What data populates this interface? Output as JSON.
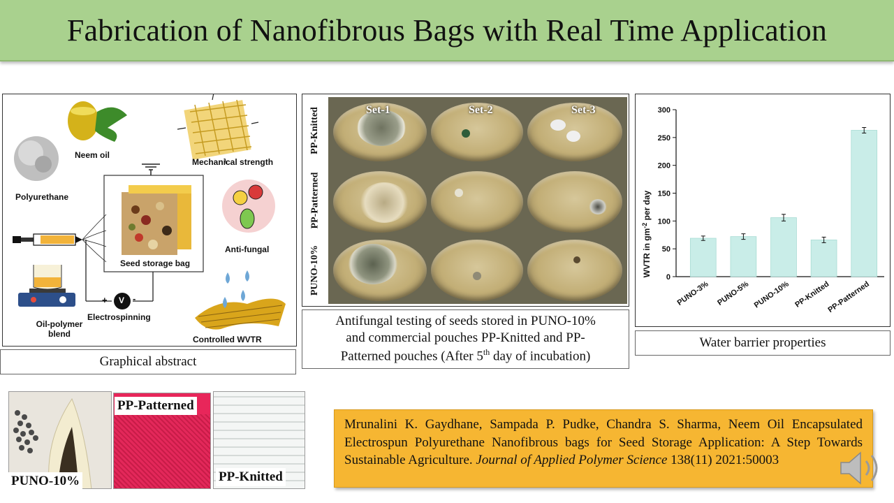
{
  "slide": {
    "title": "Fabrication of Nanofibrous Bags with Real Time Application"
  },
  "graphical_abstract": {
    "caption": "Graphical abstract",
    "labels": {
      "neem_oil": "Neem oil",
      "mechanical_strength": "Mechanical strength",
      "polyurethane": "Polyurethane",
      "anti_fungal": "Anti-fungal",
      "seed_storage_bag": "Seed storage bag",
      "oil_polymer_blend": "Oil-polymer\nblend",
      "electrospinning": "Electrospinning",
      "controlled_wvtr": "Controlled WVTR",
      "voltmeter": "V",
      "plus": "+",
      "minus": "-"
    }
  },
  "antifungal": {
    "row_labels": [
      "PP-Knitted",
      "PP-Patterned",
      "PUNO-10%"
    ],
    "set_labels": [
      "Set-1",
      "Set-2",
      "Set-3"
    ],
    "caption_line1": "Antifungal testing of seeds stored in PUNO-10%",
    "caption_line2": "and commercial pouches PP-Knitted and PP-",
    "caption_line3_pre": "Patterned pouches (After 5",
    "caption_sup": "th",
    "caption_line3_post": " day of incubation)"
  },
  "wvtr": {
    "caption": "Water barrier properties",
    "ylabel_pre": "WVTR in gm",
    "ylabel_sup": "-2",
    "ylabel_post": " per day"
  },
  "chart_data": {
    "type": "bar",
    "categories": [
      "PUNO-3%",
      "PUNO-5%",
      "PUNO-10%",
      "PP-Knitted",
      "PP-Patterned"
    ],
    "values": [
      69,
      72,
      106,
      66,
      263
    ],
    "errors": [
      4,
      5,
      6,
      5,
      5
    ],
    "ylabel": "WVTR in gm-2 per day",
    "ylim": [
      0,
      300
    ],
    "yticks": [
      0,
      50,
      100,
      150,
      200,
      250,
      300
    ],
    "bar_color": "#c9ede8",
    "bar_edge": "#a8dcd4"
  },
  "samples": {
    "puno": "PUNO-10%",
    "pp_patterned": "PP-Patterned",
    "pp_knitted": "PP-Knitted"
  },
  "citation": {
    "authors": "Mrunalini K. Gaydhane, Sampada P. Pudke, Chandra S. Sharma, Neem Oil Encapsulated Electrospun Polyurethane Nanofibrous bags for Seed Storage Application: A Step Towards Sustainable Agriculture. ",
    "journal": "Journal of Applied Polymer Science",
    "details": " 138(11) 2021:50003"
  },
  "icons": {
    "audio": "speaker-icon"
  }
}
